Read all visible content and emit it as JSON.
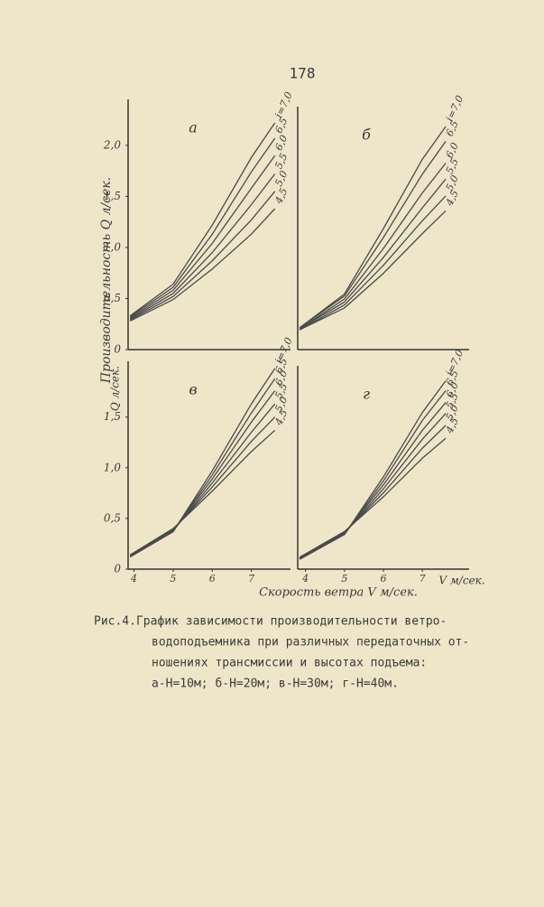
{
  "page_number": "178",
  "y_axis_label": "Производительность Q л/сек.",
  "y_unit_lower": "Q л/сек.",
  "x_axis_label": "Скорость ветра V м/сек.",
  "x_unit_right": "V м/сек.",
  "caption": [
    "Рис.4.График зависимости производительности ветро-",
    "водоподъемника при различных передаточных от-",
    "ношениях трансмиссии и высотах подъема:",
    "а-Н=10м; б-Н=20м; в-Н=30м; г-Н=40м."
  ],
  "chart_data": [
    {
      "type": "line",
      "title": "а",
      "x": [
        3.9,
        5,
        6,
        7,
        7.6
      ],
      "xlim": [
        3.85,
        8.0
      ],
      "ylim": [
        0,
        2.45
      ],
      "yticks": [
        0,
        {
          "value": 0.5,
          "label": "0,5"
        },
        {
          "value": 1.0,
          "label": "1,0"
        },
        {
          "value": 1.5,
          "label": "1,5"
        },
        {
          "value": 2.0,
          "label": "2,0"
        }
      ],
      "series": [
        {
          "name": "i=7,0",
          "color": "#4a4a4a",
          "values": [
            0.33,
            0.64,
            1.22,
            1.88,
            2.22
          ]
        },
        {
          "name": "6,5",
          "color": "#4a4a4a",
          "values": [
            0.32,
            0.61,
            1.13,
            1.74,
            2.07
          ]
        },
        {
          "name": "6,0",
          "color": "#4a4a4a",
          "values": [
            0.31,
            0.58,
            1.04,
            1.58,
            1.9
          ]
        },
        {
          "name": "5,5",
          "color": "#4a4a4a",
          "values": [
            0.3,
            0.55,
            0.95,
            1.42,
            1.72
          ]
        },
        {
          "name": "5,0",
          "color": "#4a4a4a",
          "values": [
            0.29,
            0.52,
            0.87,
            1.27,
            1.55
          ]
        },
        {
          "name": "4,5",
          "color": "#4a4a4a",
          "values": [
            0.28,
            0.49,
            0.79,
            1.13,
            1.38
          ]
        }
      ]
    },
    {
      "type": "line",
      "title": "б",
      "x": [
        3.85,
        5,
        6,
        7,
        7.6
      ],
      "xlim": [
        3.8,
        8.2
      ],
      "ylim": [
        0,
        2.45
      ],
      "series": [
        {
          "name": "i=7,0",
          "color": "#4a4a4a",
          "values": [
            0.22,
            0.56,
            1.22,
            1.92,
            2.25
          ]
        },
        {
          "name": "6,5",
          "color": "#4a4a4a",
          "values": [
            0.22,
            0.54,
            1.13,
            1.77,
            2.1
          ]
        },
        {
          "name": "6,0",
          "color": "#4a4a4a",
          "values": [
            0.21,
            0.51,
            1.02,
            1.58,
            1.88
          ]
        },
        {
          "name": "5,5",
          "color": "#4a4a4a",
          "values": [
            0.21,
            0.48,
            0.93,
            1.43,
            1.72
          ]
        },
        {
          "name": "5,0",
          "color": "#4a4a4a",
          "values": [
            0.2,
            0.45,
            0.85,
            1.3,
            1.55
          ]
        },
        {
          "name": "4,5",
          "color": "#4a4a4a",
          "values": [
            0.2,
            0.42,
            0.77,
            1.17,
            1.4
          ]
        }
      ]
    },
    {
      "type": "line",
      "title": "в",
      "x": [
        3.9,
        5,
        6,
        7,
        7.6
      ],
      "xlim": [
        3.85,
        8.0
      ],
      "ylim": [
        0,
        2.05
      ],
      "xticks": [
        4,
        5,
        6,
        7
      ],
      "yticks": [
        0,
        {
          "value": 0.5,
          "label": "0,5"
        },
        {
          "value": 1.0,
          "label": "1,0"
        },
        {
          "value": 1.5,
          "label": "1,5"
        }
      ],
      "series": [
        {
          "name": "i=7,0",
          "color": "#4a4a4a",
          "values": [
            0.12,
            0.37,
            0.97,
            1.63,
            1.98
          ]
        },
        {
          "name": "6,5",
          "color": "#4a4a4a",
          "values": [
            0.12,
            0.37,
            0.93,
            1.54,
            1.88
          ]
        },
        {
          "name": "6,0",
          "color": "#4a4a4a",
          "values": [
            0.13,
            0.38,
            0.89,
            1.45,
            1.76
          ]
        },
        {
          "name": "5,5",
          "color": "#4a4a4a",
          "values": [
            0.13,
            0.38,
            0.85,
            1.35,
            1.63
          ]
        },
        {
          "name": "5,0",
          "color": "#4a4a4a",
          "values": [
            0.14,
            0.39,
            0.81,
            1.26,
            1.5
          ]
        },
        {
          "name": "4,5",
          "color": "#4a4a4a",
          "values": [
            0.14,
            0.4,
            0.77,
            1.16,
            1.37
          ]
        }
      ]
    },
    {
      "type": "line",
      "title": "г",
      "x": [
        3.85,
        5,
        6,
        7,
        7.6
      ],
      "xlim": [
        3.8,
        8.2
      ],
      "ylim": [
        0,
        2.05
      ],
      "xticks": [
        4,
        5,
        6,
        7
      ],
      "series": [
        {
          "name": "i=7,0",
          "color": "#4a4a4a",
          "values": [
            0.1,
            0.35,
            0.93,
            1.58,
            1.9
          ]
        },
        {
          "name": "6,5",
          "color": "#4a4a4a",
          "values": [
            0.1,
            0.35,
            0.89,
            1.5,
            1.8
          ]
        },
        {
          "name": "6,0",
          "color": "#4a4a4a",
          "values": [
            0.11,
            0.36,
            0.85,
            1.4,
            1.68
          ]
        },
        {
          "name": "5,5",
          "color": "#4a4a4a",
          "values": [
            0.11,
            0.36,
            0.81,
            1.31,
            1.57
          ]
        },
        {
          "name": "5,0",
          "color": "#4a4a4a",
          "values": [
            0.12,
            0.37,
            0.77,
            1.22,
            1.45
          ]
        },
        {
          "name": "4,5",
          "color": "#4a4a4a",
          "values": [
            0.12,
            0.38,
            0.73,
            1.12,
            1.32
          ]
        }
      ]
    }
  ]
}
